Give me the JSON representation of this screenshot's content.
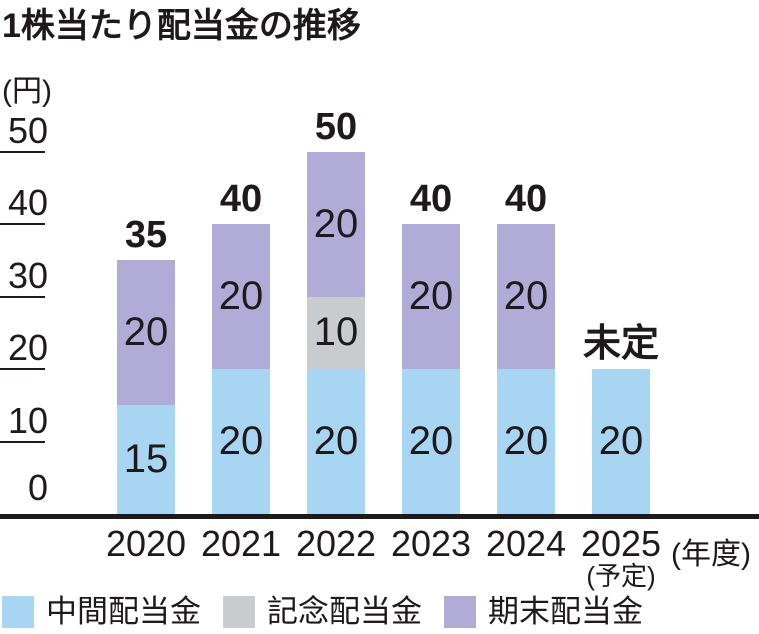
{
  "title": "1株当たり配当金の推移",
  "unit_label": "(円)",
  "axis_note": "(年度)",
  "colors": {
    "interim_blue": "#A8D5F2",
    "commemorative_gray": "#C9CCCF",
    "yearend_purple": "#B1ACD7",
    "text_black": "#1E1A1B"
  },
  "chart_data": {
    "type": "bar",
    "stacked": true,
    "title": "1株当たり配当金の推移",
    "ylabel": "(円)",
    "xlabel": "(年度)",
    "ylim": [
      0,
      50
    ],
    "yticks": [
      0,
      10,
      20,
      30,
      40,
      50
    ],
    "grid": false,
    "legend_position": "bottom",
    "categories": [
      "2020",
      "2021",
      "2022",
      "2023",
      "2024",
      "2025"
    ],
    "category_sublabels": [
      "",
      "",
      "",
      "",
      "",
      "(予定)"
    ],
    "series": [
      {
        "name": "中間配当金",
        "color": "#A8D5F2",
        "values": [
          15,
          20,
          20,
          20,
          20,
          20
        ]
      },
      {
        "name": "記念配当金",
        "color": "#C9CCCF",
        "values": [
          0,
          0,
          10,
          0,
          0,
          0
        ]
      },
      {
        "name": "期末配当金",
        "color": "#B1ACD7",
        "values": [
          20,
          20,
          20,
          20,
          20,
          0
        ]
      }
    ],
    "total_labels": [
      "35",
      "40",
      "50",
      "40",
      "40",
      "未定"
    ]
  },
  "legend": [
    {
      "label": "中間配当金",
      "color": "#A8D5F2"
    },
    {
      "label": "記念配当金",
      "color": "#C9CCCF"
    },
    {
      "label": "期末配当金",
      "color": "#B1ACD7"
    }
  ]
}
